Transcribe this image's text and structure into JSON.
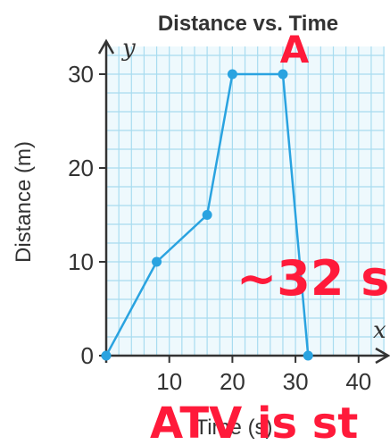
{
  "colors": {
    "grid": "#a8dcf0",
    "background": "#eef9fd",
    "line": "#2aa3e0",
    "point": "#2aa3e0",
    "axis": "#333333",
    "annotation": "#ff1a3a"
  },
  "chart_data": {
    "type": "line",
    "title": "Distance vs. Time",
    "xlabel": "Time (s)",
    "ylabel": "Distance (m)",
    "x_axis_variable": "x",
    "y_axis_variable": "y",
    "xlim": [
      0,
      40
    ],
    "ylim": [
      0,
      30
    ],
    "xticks": [
      10,
      20,
      30,
      40
    ],
    "yticks": [
      0,
      10,
      20,
      30
    ],
    "grid": true,
    "series": [
      {
        "x": [
          0,
          8,
          16,
          20,
          28,
          32
        ],
        "y": [
          0,
          10,
          15,
          30,
          30,
          0
        ]
      }
    ],
    "annotations": [
      {
        "text": "A"
      },
      {
        "text": "~32 s"
      },
      {
        "text": "ATV is st"
      }
    ]
  }
}
